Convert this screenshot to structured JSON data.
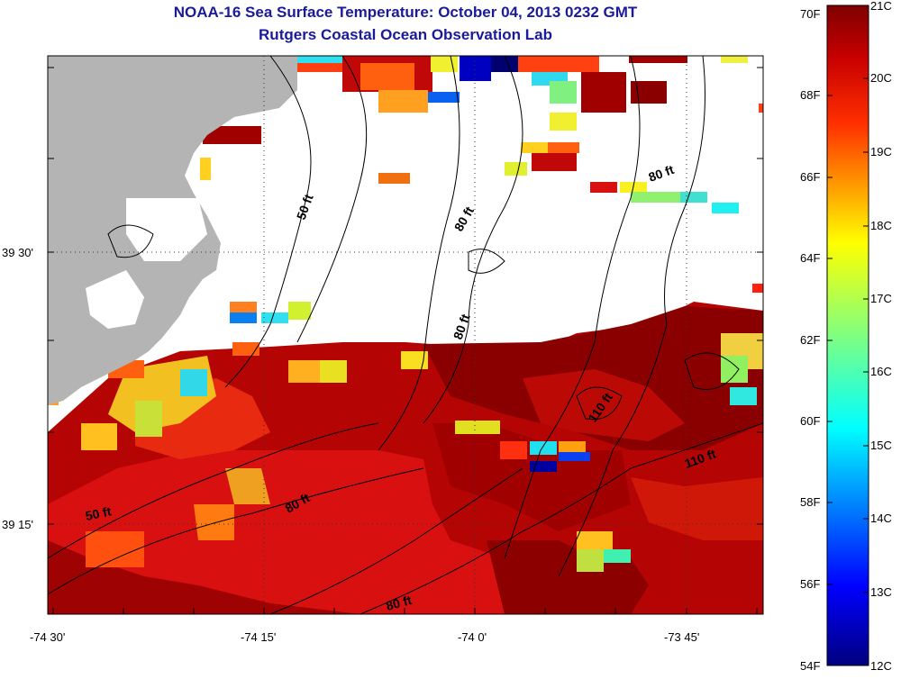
{
  "title": "NOAA-16 Sea Surface Temperature:  October 04, 2013 0232 GMT",
  "subtitle": "Rutgers Coastal Ocean Observation Lab",
  "x_ticks": [
    "-74 30'",
    "-74 15'",
    "-74 0'",
    "-73 45'"
  ],
  "y_ticks": [
    "39 30'",
    "39 15'"
  ],
  "contour_labels": [
    "50 ft",
    "80 ft",
    "80 ft",
    "80 ft",
    "110 ft",
    "110 ft",
    "50 ft",
    "80 ft",
    "80 ft"
  ],
  "colorbar": {
    "fahrenheit": [
      "70F",
      "68F",
      "66F",
      "64F",
      "62F",
      "60F",
      "58F",
      "56F",
      "54F"
    ],
    "celsius": [
      "21C",
      "20C",
      "19C",
      "18C",
      "17C",
      "16C",
      "15C",
      "14C",
      "13C",
      "12C"
    ]
  },
  "colors": {
    "title": "#1a1a9a",
    "land": "#b4b4b4",
    "no_data": "#ffffff"
  }
}
